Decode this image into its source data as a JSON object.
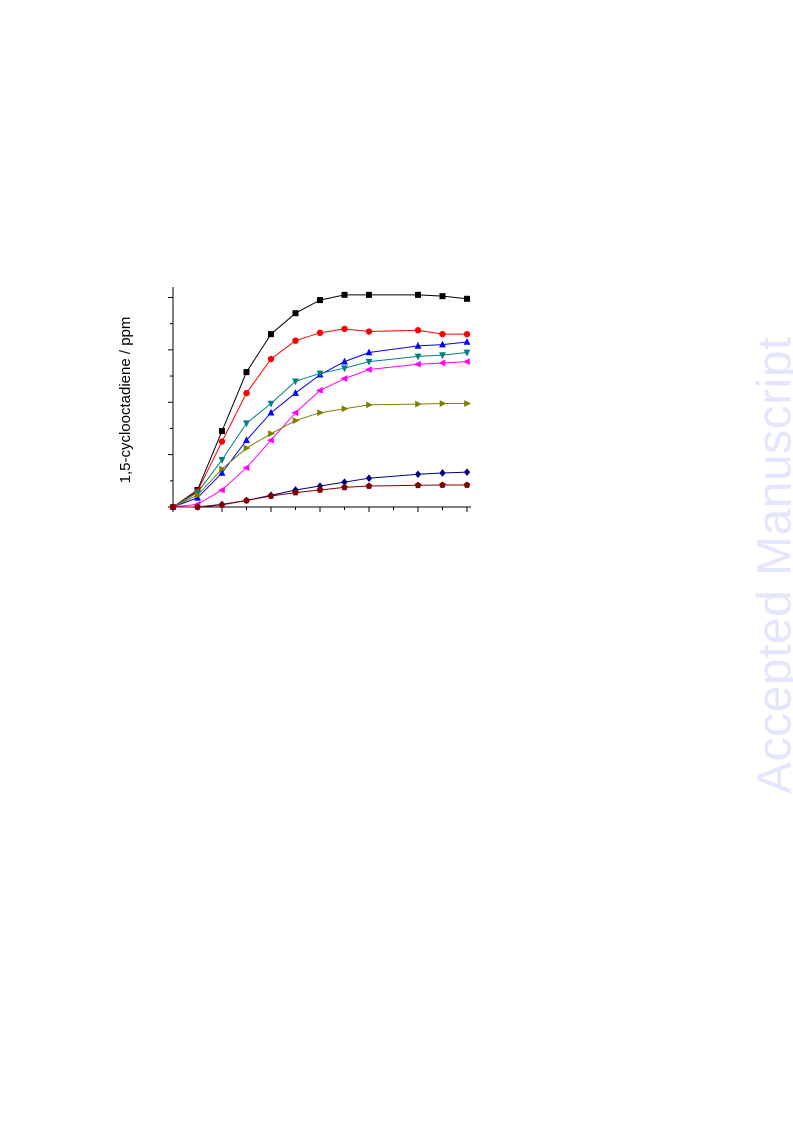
{
  "watermark": "Accepted Manuscript",
  "chart_data": {
    "type": "line",
    "title": "",
    "xlabel": "",
    "ylabel": "1,5-cyclooctadiene / ppm",
    "x": [
      0,
      1,
      2,
      3,
      4,
      5,
      6,
      7,
      8,
      10,
      11,
      12
    ],
    "xlim": [
      0,
      12
    ],
    "ylim": [
      0,
      8.4
    ],
    "grid": false,
    "legend": "none",
    "series": [
      {
        "color": "#000000",
        "marker": "square",
        "values": [
          0.0,
          0.65,
          2.9,
          5.15,
          6.6,
          7.4,
          7.9,
          8.1,
          8.1,
          8.1,
          8.05,
          7.95
        ]
      },
      {
        "color": "#ff0000",
        "marker": "circle",
        "values": [
          0.0,
          0.6,
          2.5,
          4.35,
          5.65,
          6.35,
          6.65,
          6.8,
          6.7,
          6.75,
          6.6,
          6.6
        ]
      },
      {
        "color": "#0000ff",
        "marker": "triangle-up",
        "values": [
          0.0,
          0.35,
          1.3,
          2.55,
          3.6,
          4.35,
          5.05,
          5.55,
          5.9,
          6.15,
          6.2,
          6.3
        ]
      },
      {
        "color": "#008080",
        "marker": "triangle-down",
        "values": [
          0.0,
          0.55,
          1.8,
          3.2,
          3.95,
          4.8,
          5.1,
          5.3,
          5.55,
          5.75,
          5.8,
          5.9
        ]
      },
      {
        "color": "#ff00ff",
        "marker": "triangle-left",
        "values": [
          0.0,
          0.1,
          0.65,
          1.5,
          2.55,
          3.6,
          4.45,
          4.9,
          5.25,
          5.45,
          5.5,
          5.55
        ]
      },
      {
        "color": "#808000",
        "marker": "triangle-right",
        "values": [
          0.0,
          0.45,
          1.45,
          2.25,
          2.8,
          3.3,
          3.6,
          3.75,
          3.9,
          3.93,
          3.95,
          3.95
        ]
      },
      {
        "color": "#000080",
        "marker": "diamond",
        "values": [
          0.0,
          0.0,
          0.1,
          0.25,
          0.45,
          0.65,
          0.8,
          0.95,
          1.1,
          1.25,
          1.3,
          1.33
        ]
      },
      {
        "color": "#800000",
        "marker": "pentagon",
        "values": [
          0.0,
          0.0,
          0.08,
          0.25,
          0.42,
          0.55,
          0.65,
          0.75,
          0.8,
          0.83,
          0.84,
          0.84
        ]
      }
    ]
  }
}
